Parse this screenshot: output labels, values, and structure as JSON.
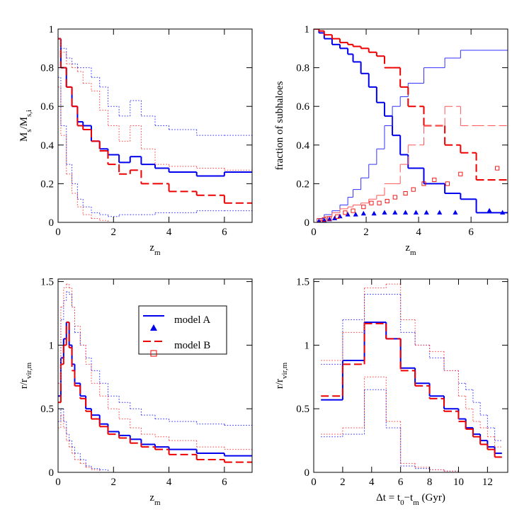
{
  "chart_data": [
    {
      "type": "step",
      "xlabel": [
        "z",
        "m"
      ],
      "ylabel": [
        "M",
        "s",
        "/M",
        "s,i"
      ],
      "xlim": [
        0,
        7
      ],
      "ylim": [
        0,
        1
      ],
      "xticks": [
        0,
        2,
        4,
        6
      ],
      "yticks": [
        0,
        0.2,
        0.4,
        0.6,
        0.8,
        1
      ],
      "series": [
        {
          "color": "#0000ee",
          "dash": "solid",
          "width": 2,
          "bins": [
            0,
            0.1,
            0.3,
            0.5,
            0.7,
            0.9,
            1.2,
            1.5,
            1.8,
            2.2,
            2.6,
            3,
            3.5,
            4,
            5,
            6,
            7
          ],
          "values": [
            0.95,
            0.8,
            0.7,
            0.6,
            0.52,
            0.5,
            0.42,
            0.38,
            0.35,
            0.31,
            0.34,
            0.3,
            0.28,
            0.26,
            0.24,
            0.26
          ]
        },
        {
          "color": "#ee0000",
          "dash": "dashed",
          "width": 2,
          "bins": [
            0,
            0.1,
            0.3,
            0.5,
            0.7,
            0.9,
            1.2,
            1.5,
            1.8,
            2.2,
            2.6,
            3,
            3.5,
            4,
            5,
            6,
            7
          ],
          "values": [
            0.95,
            0.8,
            0.7,
            0.6,
            0.5,
            0.48,
            0.42,
            0.37,
            0.3,
            0.25,
            0.27,
            0.2,
            0.2,
            0.16,
            0.14,
            0.1
          ]
        },
        {
          "color": "#3333ff",
          "dash": "dotted",
          "width": 1,
          "bins": [
            0,
            0.1,
            0.3,
            0.5,
            0.7,
            0.9,
            1.2,
            1.5,
            1.8,
            2.2,
            2.6,
            3,
            3.5,
            4,
            5,
            6,
            7
          ],
          "values": [
            0.95,
            0.9,
            0.85,
            0.82,
            0.8,
            0.8,
            0.75,
            0.7,
            0.6,
            0.55,
            0.63,
            0.55,
            0.5,
            0.48,
            0.45,
            0.45
          ]
        },
        {
          "color": "#3333ff",
          "dash": "dotted",
          "width": 1,
          "bins": [
            0,
            0.1,
            0.3,
            0.5,
            0.7,
            0.9,
            1.2,
            1.5,
            1.8,
            2.2,
            2.6,
            3,
            3.5,
            4,
            5,
            6,
            7
          ],
          "values": [
            0.75,
            0.5,
            0.3,
            0.2,
            0.12,
            0.08,
            0.05,
            0.04,
            0.03,
            0.04,
            0.04,
            0.04,
            0.05,
            0.05,
            0.06,
            0.06
          ]
        },
        {
          "color": "#ff4444",
          "dash": "dotted",
          "width": 1,
          "bins": [
            0,
            0.1,
            0.3,
            0.5,
            0.7,
            0.9,
            1.2,
            1.5,
            1.8,
            2.2,
            2.6,
            3,
            3.5,
            4,
            5,
            6,
            7
          ],
          "values": [
            0.95,
            0.88,
            0.82,
            0.8,
            0.78,
            0.72,
            0.68,
            0.58,
            0.5,
            0.42,
            0.5,
            0.38,
            0.3,
            0.29,
            0.28,
            0.27
          ]
        },
        {
          "color": "#ff4444",
          "dash": "dotted",
          "width": 1,
          "bins": [
            0,
            0.1,
            0.3,
            0.5,
            0.7,
            0.9,
            1.2,
            1.5,
            1.8,
            2.2,
            2.6,
            3,
            3.5,
            4,
            5,
            6,
            7
          ],
          "values": [
            0.7,
            0.45,
            0.25,
            0.15,
            0.08,
            0.04,
            0.02,
            0.01,
            0,
            0,
            0,
            0,
            0,
            0,
            0,
            0
          ]
        }
      ]
    },
    {
      "type": "step",
      "xlabel": [
        "z",
        "m"
      ],
      "ylabel": [
        "fraction of subhaloes"
      ],
      "xlim": [
        0,
        7.4
      ],
      "ylim": [
        0,
        1
      ],
      "xticks": [
        0,
        2,
        4,
        6
      ],
      "yticks": [
        0,
        0.2,
        0.4,
        0.6,
        0.8,
        1
      ],
      "series": [
        {
          "color": "#0000ee",
          "dash": "solid",
          "width": 2,
          "bins": [
            0,
            0.2,
            0.4,
            0.7,
            1,
            1.3,
            1.5,
            1.8,
            2.1,
            2.4,
            2.7,
            3,
            3.3,
            3.6,
            4.2,
            5,
            5.6,
            6.2,
            7.4
          ],
          "values": [
            1,
            0.98,
            0.95,
            0.92,
            0.9,
            0.87,
            0.83,
            0.77,
            0.7,
            0.62,
            0.55,
            0.45,
            0.35,
            0.28,
            0.2,
            0.15,
            0.12,
            0.05
          ]
        },
        {
          "color": "#3333ff",
          "dash": "solid",
          "width": 1,
          "bins": [
            0,
            0.2,
            0.4,
            0.7,
            1,
            1.3,
            1.5,
            1.8,
            2.1,
            2.4,
            2.7,
            3,
            3.3,
            3.6,
            4.2,
            5,
            5.6,
            6.2,
            7.4
          ],
          "values": [
            0,
            0.02,
            0.04,
            0.06,
            0.09,
            0.13,
            0.17,
            0.23,
            0.3,
            0.38,
            0.5,
            0.6,
            0.65,
            0.72,
            0.8,
            0.85,
            0.89,
            0.89
          ]
        },
        {
          "color": "#ee0000",
          "dash": "dashed",
          "width": 2,
          "bins": [
            0,
            0.2,
            0.4,
            0.7,
            1,
            1.3,
            1.5,
            1.8,
            2.1,
            2.4,
            2.7,
            3,
            3.3,
            3.6,
            4.2,
            5,
            5.6,
            6.2,
            7.4
          ],
          "values": [
            1,
            0.99,
            0.97,
            0.95,
            0.93,
            0.92,
            0.91,
            0.9,
            0.88,
            0.86,
            0.8,
            0.8,
            0.7,
            0.6,
            0.5,
            0.4,
            0.36,
            0.22
          ]
        },
        {
          "color": "#ff5555",
          "dash": "dashed",
          "width": 1,
          "bins": [
            0,
            0.2,
            0.4,
            0.7,
            1,
            1.3,
            1.5,
            1.8,
            2.1,
            2.4,
            2.7,
            3,
            3.3,
            3.6,
            4.2,
            5,
            5.6,
            6.2,
            7.4
          ],
          "values": [
            0,
            0.01,
            0.03,
            0.05,
            0.07,
            0.08,
            0.09,
            0.1,
            0.12,
            0.14,
            0.2,
            0.2,
            0.3,
            0.4,
            0.5,
            0.6,
            0.5,
            0.5
          ]
        },
        {
          "color": "#0000ee",
          "marker": "triangle",
          "x": [
            0.2,
            0.4,
            0.6,
            0.8,
            1,
            1.3,
            1.6,
            1.9,
            2.3,
            2.7,
            3.1,
            3.5,
            3.9,
            4.3,
            4.8,
            5.4,
            6.7,
            7.2
          ],
          "values": [
            0.005,
            0.01,
            0.015,
            0.02,
            0.03,
            0.04,
            0.04,
            0.045,
            0.045,
            0.05,
            0.05,
            0.05,
            0.05,
            0.05,
            0.05,
            0.05,
            0.06,
            0.05
          ]
        },
        {
          "color": "#ee0000",
          "marker": "square",
          "x": [
            0.2,
            0.4,
            0.6,
            0.9,
            1.2,
            1.5,
            1.9,
            2.2,
            2.5,
            2.8,
            3.1,
            3.5,
            3.8,
            4.2,
            4.6,
            5.1,
            5.6,
            7
          ],
          "values": [
            0.01,
            0.015,
            0.02,
            0.03,
            0.05,
            0.06,
            0.08,
            0.1,
            0.1,
            0.11,
            0.13,
            0.15,
            0.17,
            0.2,
            0.22,
            0.2,
            0.25,
            0.28
          ]
        }
      ]
    },
    {
      "type": "step",
      "xlabel": [
        "z",
        "m"
      ],
      "ylabel": [
        "r/r",
        "vir,m"
      ],
      "legend": "upper right",
      "xlim": [
        0,
        7
      ],
      "ylim": [
        0,
        1.52
      ],
      "xticks": [
        0,
        2,
        4,
        6
      ],
      "yticks": [
        0,
        0.5,
        1,
        1.5
      ],
      "series": [
        {
          "name": "model A",
          "color": "#0000ee",
          "dash": "solid",
          "width": 2,
          "bins": [
            0,
            0.1,
            0.2,
            0.3,
            0.4,
            0.5,
            0.6,
            0.8,
            1,
            1.2,
            1.5,
            1.8,
            2.2,
            2.6,
            3,
            3.5,
            4,
            5,
            6,
            7
          ],
          "values": [
            0.6,
            0.9,
            1.05,
            1.18,
            1,
            0.85,
            0.7,
            0.6,
            0.5,
            0.45,
            0.38,
            0.32,
            0.29,
            0.26,
            0.22,
            0.2,
            0.18,
            0.15,
            0.13
          ]
        },
        {
          "name": "model B",
          "color": "#ee0000",
          "dash": "dashed",
          "width": 2,
          "bins": [
            0,
            0.1,
            0.2,
            0.3,
            0.4,
            0.5,
            0.6,
            0.8,
            1,
            1.2,
            1.5,
            1.8,
            2.2,
            2.6,
            3,
            3.5,
            4,
            5,
            6,
            7
          ],
          "values": [
            0.55,
            0.85,
            1,
            1.18,
            0.98,
            0.8,
            0.68,
            0.58,
            0.48,
            0.42,
            0.36,
            0.3,
            0.27,
            0.23,
            0.2,
            0.18,
            0.14,
            0.1,
            0.08
          ]
        },
        {
          "color": "#3333ff",
          "dash": "dotted",
          "width": 1,
          "bins": [
            0,
            0.1,
            0.2,
            0.3,
            0.4,
            0.5,
            0.6,
            0.8,
            1,
            1.2,
            1.5,
            1.8,
            2.2,
            2.6,
            3,
            3.5,
            4,
            5,
            6,
            7
          ],
          "values": [
            0.7,
            1.2,
            1.35,
            1.42,
            1.4,
            1.3,
            1.1,
            1,
            0.9,
            0.8,
            0.7,
            0.6,
            0.55,
            0.5,
            0.45,
            0.42,
            0.4,
            0.38,
            0.37
          ]
        },
        {
          "color": "#ff4444",
          "dash": "dotted",
          "width": 1,
          "bins": [
            0,
            0.1,
            0.2,
            0.3,
            0.4,
            0.5,
            0.6,
            0.8,
            1,
            1.2,
            1.5,
            1.8,
            2.2,
            2.6,
            3,
            3.5,
            4,
            5,
            6,
            7
          ],
          "values": [
            0.7,
            1.3,
            1.45,
            1.48,
            1.45,
            1.3,
            1.15,
            1,
            0.85,
            0.7,
            0.6,
            0.5,
            0.42,
            0.35,
            0.3,
            0.28,
            0.25,
            0.2,
            0.18
          ]
        },
        {
          "color": "#3333ff",
          "dash": "dotted",
          "width": 1,
          "bins": [
            0,
            0.1,
            0.2,
            0.3,
            0.4,
            0.5,
            0.6,
            0.8,
            1,
            1.2,
            1.5,
            1.8,
            2.2,
            2.6,
            3,
            3.5,
            4,
            5,
            6,
            7
          ],
          "values": [
            0.4,
            0.5,
            0.4,
            0.3,
            0.25,
            0.2,
            0.15,
            0.1,
            0.05,
            0.03,
            0.02,
            0,
            0,
            0,
            0,
            0,
            0,
            0,
            0
          ]
        },
        {
          "color": "#ff4444",
          "dash": "dotted",
          "width": 1,
          "bins": [
            0,
            0.1,
            0.2,
            0.3,
            0.4,
            0.5,
            0.6,
            0.8,
            1,
            1.2,
            1.5,
            1.8,
            2.2,
            2.6,
            3,
            3.5,
            4,
            5,
            6,
            7
          ],
          "values": [
            0.35,
            0.45,
            0.35,
            0.25,
            0.2,
            0.15,
            0.1,
            0.07,
            0.04,
            0.02,
            0,
            0,
            0,
            0,
            0,
            0,
            0,
            0,
            0
          ]
        }
      ]
    },
    {
      "type": "step",
      "xlabel": [
        "Δt  = t",
        "0",
        "−t",
        "m",
        " (Gyr)"
      ],
      "ylabel": [
        "r/r",
        "vir,m"
      ],
      "xlim": [
        0,
        13.4
      ],
      "ylim": [
        0,
        1.52
      ],
      "xticks": [
        0,
        2,
        4,
        6,
        8,
        10,
        12
      ],
      "yticks": [
        0,
        0.5,
        1,
        1.5
      ],
      "series": [
        {
          "color": "#0000ee",
          "dash": "solid",
          "width": 2,
          "bins": [
            0.5,
            2,
            3.5,
            5,
            6,
            7,
            8,
            9,
            10,
            10.5,
            11,
            11.5,
            12,
            12.5,
            13
          ],
          "values": [
            0.57,
            0.88,
            1.18,
            1.05,
            0.82,
            0.7,
            0.6,
            0.5,
            0.42,
            0.35,
            0.3,
            0.25,
            0.2,
            0.15
          ]
        },
        {
          "color": "#ee0000",
          "dash": "dashed",
          "width": 2,
          "bins": [
            0.5,
            2,
            3.5,
            5,
            6,
            7,
            8,
            9,
            10,
            10.5,
            11,
            11.5,
            12,
            12.5,
            13
          ],
          "values": [
            0.6,
            0.85,
            1.17,
            1.05,
            0.8,
            0.68,
            0.58,
            0.48,
            0.4,
            0.34,
            0.28,
            0.22,
            0.18,
            0.12
          ]
        },
        {
          "color": "#3333ff",
          "dash": "dotted",
          "width": 1,
          "bins": [
            0.5,
            2,
            3.5,
            5,
            6,
            7,
            8,
            9,
            10,
            10.5,
            11,
            11.5,
            12,
            12.5,
            13
          ],
          "values": [
            0.85,
            1.2,
            1.4,
            1.4,
            1.1,
            1,
            0.9,
            0.8,
            0.7,
            0.65,
            0.55,
            0.45,
            0.35,
            0.25
          ]
        },
        {
          "color": "#ff4444",
          "dash": "dotted",
          "width": 1,
          "bins": [
            0.5,
            2,
            3.5,
            5,
            6,
            7,
            8,
            9,
            10,
            10.5,
            11,
            11.5,
            12,
            12.5,
            13
          ],
          "values": [
            0.88,
            1.1,
            1.45,
            1.48,
            1.2,
            1,
            0.95,
            0.8,
            0.6,
            0.5,
            0.4,
            0.35,
            0.28,
            0.2
          ]
        },
        {
          "color": "#3333ff",
          "dash": "dotted",
          "width": 1,
          "bins": [
            0.5,
            2,
            3.5,
            5,
            6,
            7,
            8,
            9,
            10,
            10.5,
            11,
            11.5,
            12,
            12.5,
            13
          ],
          "values": [
            0.28,
            0.3,
            0.65,
            0.35,
            0.05,
            0.03,
            0.02,
            0.01,
            0,
            0,
            0,
            0,
            0,
            0
          ]
        },
        {
          "color": "#ff4444",
          "dash": "dotted",
          "width": 1,
          "bins": [
            0.5,
            2,
            3.5,
            5,
            6,
            7,
            8,
            9,
            10,
            10.5,
            11,
            11.5,
            12,
            12.5,
            13
          ],
          "values": [
            0.3,
            0.35,
            0.75,
            0.4,
            0.07,
            0.04,
            0.02,
            0.01,
            0,
            0,
            0,
            0,
            0,
            0
          ]
        }
      ]
    }
  ]
}
